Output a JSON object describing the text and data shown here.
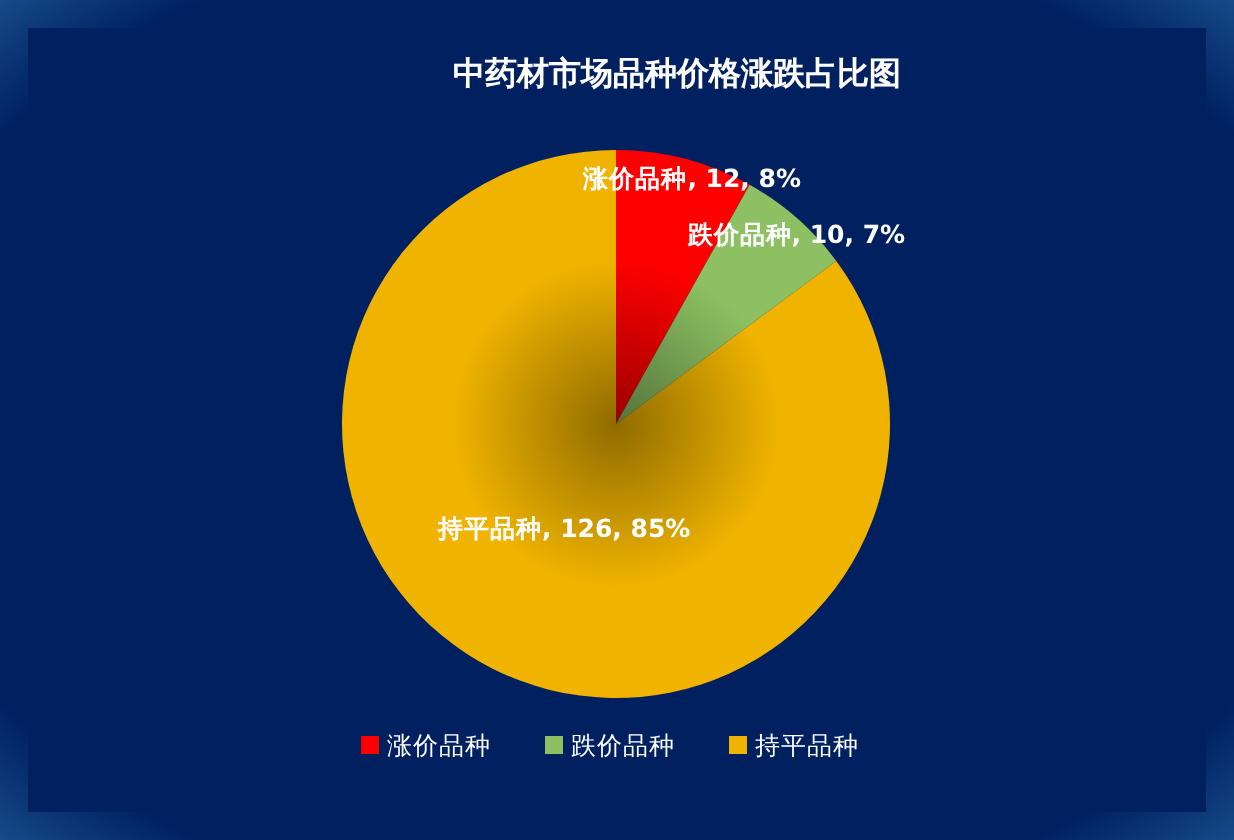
{
  "chart_data": {
    "type": "pie",
    "title": "中药材市场品种价格涨跌占比图",
    "categories": [
      "涨价品种",
      "跌价品种",
      "持平品种"
    ],
    "values": [
      12,
      10,
      126
    ],
    "colors": [
      "#ff0000",
      "#8cc063",
      "#f0b400"
    ],
    "value_labels": [
      "涨价品种, 12, 8%",
      "跌价品种, 10, 7%",
      "持平品种, 126, 85%"
    ],
    "legend": "bottom"
  }
}
